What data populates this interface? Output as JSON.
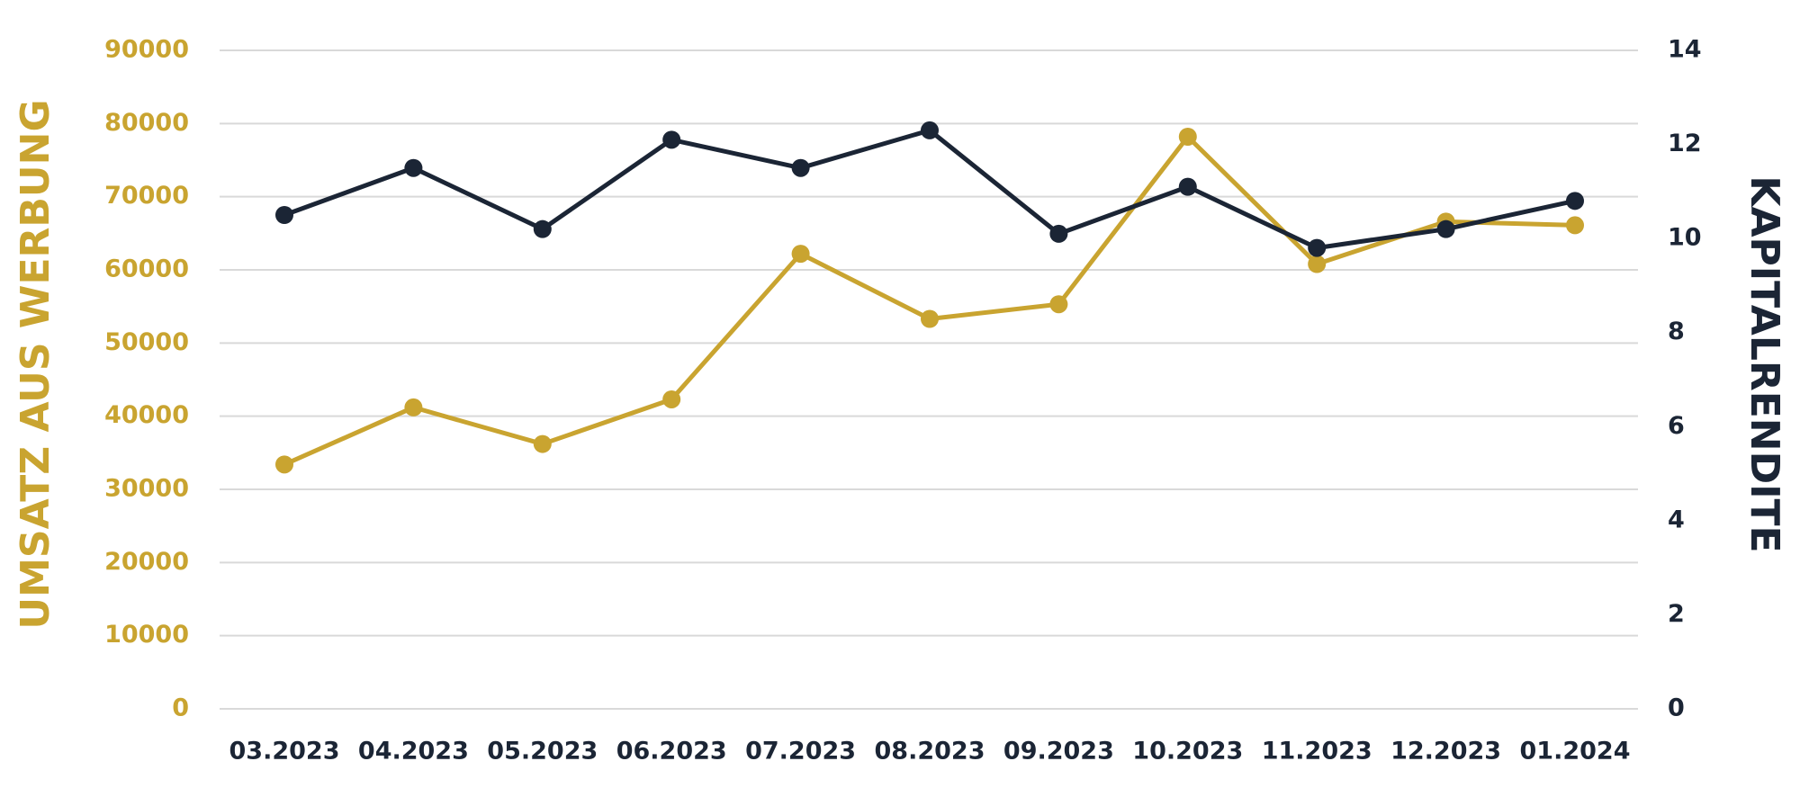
{
  "chart_data": {
    "type": "line",
    "y_label": "UMSATZ AUS WERBUNG",
    "y2_label": "KAPITALRENDITE",
    "categories": [
      "03.2023",
      "04.2023",
      "05.2023",
      "06.2023",
      "07.2023",
      "08.2023",
      "09.2023",
      "10.2023",
      "11.2023",
      "12.2023",
      "01.2024"
    ],
    "series": [
      {
        "color": "#c9a430",
        "values": [
          33400,
          41200,
          36200,
          42300,
          62200,
          53300,
          55300,
          78200,
          60800,
          66600,
          66100
        ]
      },
      {
        "color": "#1b2535",
        "axis": "y2",
        "values": [
          10.5,
          11.5,
          10.2,
          12.1,
          11.5,
          12.3,
          10.1,
          11.1,
          9.8,
          10.2,
          10.8
        ]
      }
    ],
    "ylim": [
      0,
      90000
    ],
    "yticks": [
      0,
      10000,
      20000,
      30000,
      40000,
      50000,
      60000,
      70000,
      80000,
      90000
    ],
    "y2lim": [
      0,
      14
    ],
    "y2ticks": [
      0,
      2,
      4,
      6,
      8,
      10,
      12,
      14
    ],
    "grid": true
  }
}
